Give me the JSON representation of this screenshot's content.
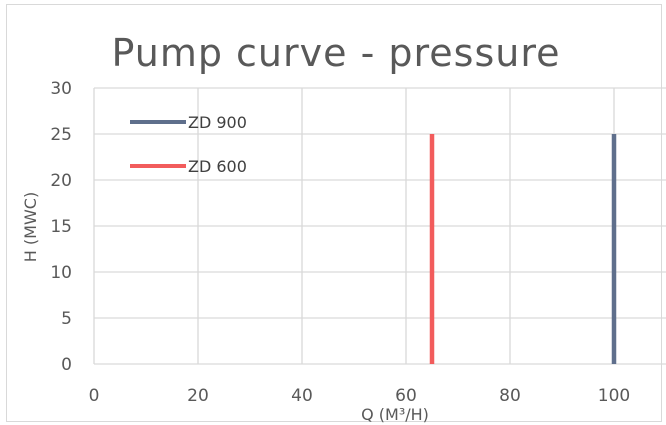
{
  "chart_data": {
    "type": "line",
    "title": "Pump curve - pressure",
    "xlabel": "Q (M³/H)",
    "ylabel": "H (MWC)",
    "xlim": [
      0,
      110
    ],
    "ylim": [
      0,
      30
    ],
    "x_ticks": [
      "0",
      "20",
      "40",
      "60",
      "80",
      "100"
    ],
    "y_ticks": [
      "0",
      "5",
      "10",
      "15",
      "20",
      "25",
      "30"
    ],
    "x_tick_values": [
      0,
      20,
      40,
      60,
      80,
      100
    ],
    "y_tick_values": [
      0,
      5,
      10,
      15,
      20,
      25,
      30
    ],
    "grid": true,
    "legend_position": "top-left",
    "series": [
      {
        "name": "ZD 900",
        "color": "#5f6f8c",
        "points": [
          [
            100,
            0
          ],
          [
            100,
            25
          ]
        ]
      },
      {
        "name": "ZD 600",
        "color": "#f25c5c",
        "points": [
          [
            65,
            0
          ],
          [
            65,
            25
          ]
        ]
      }
    ]
  }
}
